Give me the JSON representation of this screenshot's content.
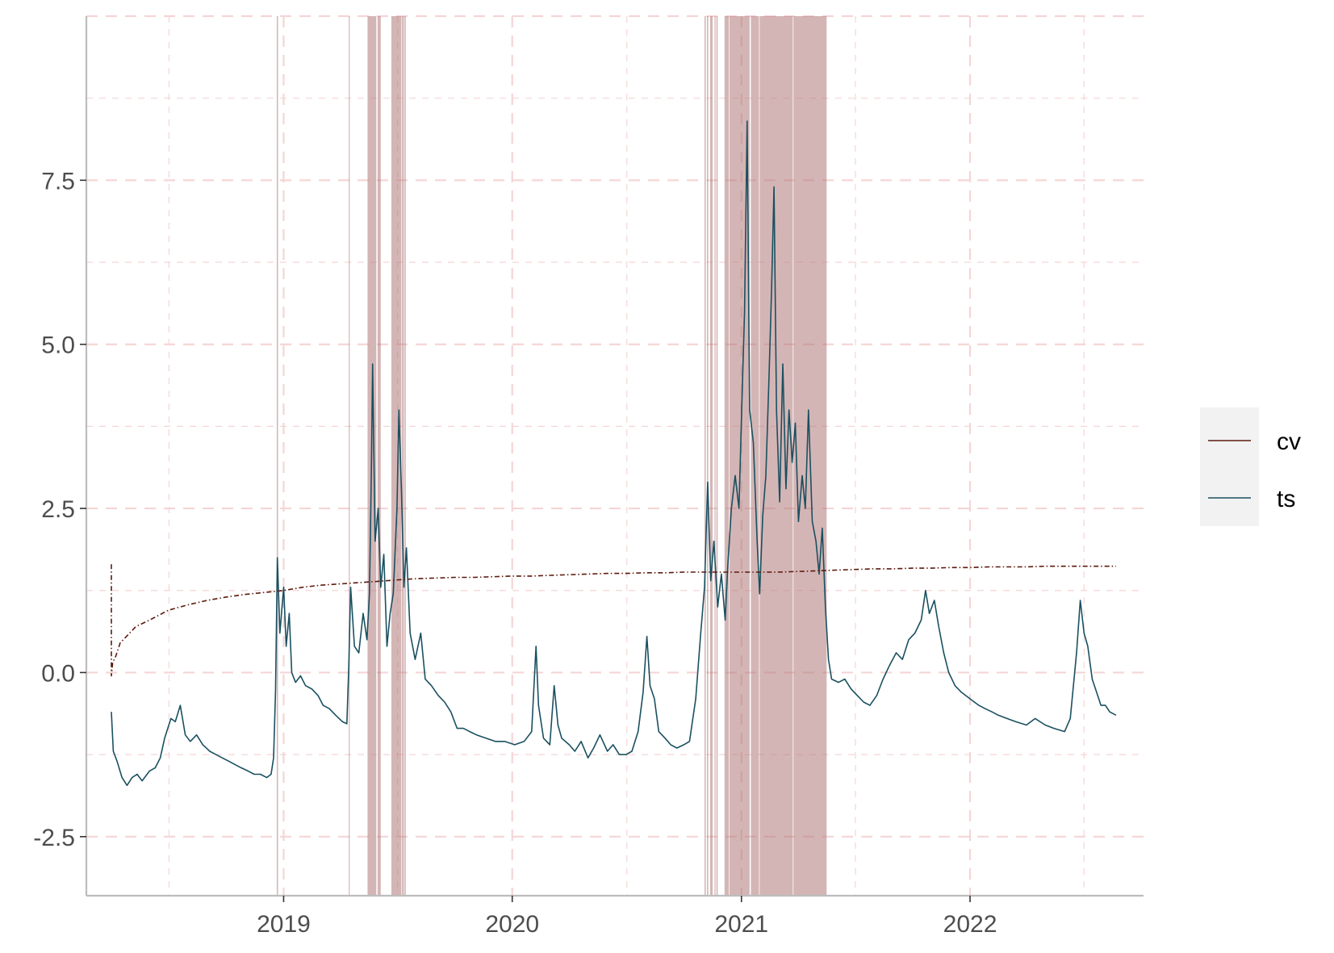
{
  "chart_data": {
    "type": "line",
    "title": "",
    "xlabel": "",
    "ylabel": "",
    "x_ticks": [
      "2019",
      "2020",
      "2021",
      "2022"
    ],
    "y_ticks": [
      "-2.5",
      "0.0",
      "2.5",
      "5.0",
      "7.5"
    ],
    "xlim": [
      "2018-02-20",
      "2022-10-05"
    ],
    "ylim": [
      -3.4,
      10.0
    ],
    "grid": true,
    "legend": {
      "position": "right",
      "entries": [
        "cv",
        "ts"
      ]
    },
    "colors": {
      "cv": "#5c1a0e",
      "ts": "#1a5060",
      "shade": "#b07878",
      "grid": "#f5d5d5",
      "axis": "#bdbdbd",
      "legend_bg": "#f2f2f2"
    },
    "series": [
      {
        "name": "ts",
        "points": [
          [
            "2018-04-01",
            -0.6
          ],
          [
            "2018-04-04",
            -1.2
          ],
          [
            "2018-04-10",
            -1.35
          ],
          [
            "2018-04-18",
            -1.6
          ],
          [
            "2018-04-26",
            -1.72
          ],
          [
            "2018-05-04",
            -1.6
          ],
          [
            "2018-05-12",
            -1.55
          ],
          [
            "2018-05-20",
            -1.65
          ],
          [
            "2018-06-01",
            -1.5
          ],
          [
            "2018-06-10",
            -1.45
          ],
          [
            "2018-06-18",
            -1.3
          ],
          [
            "2018-06-25",
            -1.0
          ],
          [
            "2018-07-05",
            -0.7
          ],
          [
            "2018-07-12",
            -0.75
          ],
          [
            "2018-07-20",
            -0.5
          ],
          [
            "2018-07-28",
            -0.95
          ],
          [
            "2018-08-05",
            -1.05
          ],
          [
            "2018-08-15",
            -0.95
          ],
          [
            "2018-08-25",
            -1.1
          ],
          [
            "2018-09-05",
            -1.2
          ],
          [
            "2018-09-15",
            -1.25
          ],
          [
            "2018-09-25",
            -1.3
          ],
          [
            "2018-10-05",
            -1.35
          ],
          [
            "2018-10-15",
            -1.4
          ],
          [
            "2018-10-25",
            -1.45
          ],
          [
            "2018-11-05",
            -1.5
          ],
          [
            "2018-11-15",
            -1.55
          ],
          [
            "2018-11-25",
            -1.55
          ],
          [
            "2018-12-05",
            -1.6
          ],
          [
            "2018-12-12",
            -1.55
          ],
          [
            "2018-12-16",
            -1.3
          ],
          [
            "2018-12-19",
            -0.3
          ],
          [
            "2018-12-22",
            1.75
          ],
          [
            "2018-12-26",
            0.6
          ],
          [
            "2019-01-01",
            1.3
          ],
          [
            "2019-01-05",
            0.4
          ],
          [
            "2019-01-10",
            0.9
          ],
          [
            "2019-01-14",
            0.0
          ],
          [
            "2019-01-20",
            -0.15
          ],
          [
            "2019-01-28",
            -0.05
          ],
          [
            "2019-02-05",
            -0.2
          ],
          [
            "2019-02-15",
            -0.25
          ],
          [
            "2019-02-25",
            -0.35
          ],
          [
            "2019-03-05",
            -0.5
          ],
          [
            "2019-03-15",
            -0.55
          ],
          [
            "2019-03-25",
            -0.65
          ],
          [
            "2019-04-05",
            -0.75
          ],
          [
            "2019-04-12",
            -0.78
          ],
          [
            "2019-04-15",
            0.1
          ],
          [
            "2019-04-18",
            1.3
          ],
          [
            "2019-04-24",
            0.4
          ],
          [
            "2019-05-01",
            0.3
          ],
          [
            "2019-05-08",
            0.9
          ],
          [
            "2019-05-14",
            0.5
          ],
          [
            "2019-05-18",
            1.2
          ],
          [
            "2019-05-21",
            3.0
          ],
          [
            "2019-05-23",
            4.7
          ],
          [
            "2019-05-27",
            2.0
          ],
          [
            "2019-06-01",
            2.5
          ],
          [
            "2019-06-05",
            1.3
          ],
          [
            "2019-06-10",
            1.8
          ],
          [
            "2019-06-15",
            0.4
          ],
          [
            "2019-06-20",
            0.9
          ],
          [
            "2019-06-25",
            1.2
          ],
          [
            "2019-07-01",
            2.5
          ],
          [
            "2019-07-04",
            4.0
          ],
          [
            "2019-07-08",
            2.8
          ],
          [
            "2019-07-12",
            1.3
          ],
          [
            "2019-07-16",
            1.9
          ],
          [
            "2019-07-22",
            0.6
          ],
          [
            "2019-07-30",
            0.2
          ],
          [
            "2019-08-08",
            0.6
          ],
          [
            "2019-08-15",
            -0.1
          ],
          [
            "2019-08-25",
            -0.2
          ],
          [
            "2019-09-05",
            -0.35
          ],
          [
            "2019-09-15",
            -0.45
          ],
          [
            "2019-09-25",
            -0.6
          ],
          [
            "2019-10-05",
            -0.85
          ],
          [
            "2019-10-15",
            -0.85
          ],
          [
            "2019-10-25",
            -0.9
          ],
          [
            "2019-11-05",
            -0.95
          ],
          [
            "2019-11-20",
            -1.0
          ],
          [
            "2019-12-05",
            -1.05
          ],
          [
            "2019-12-20",
            -1.05
          ],
          [
            "2020-01-05",
            -1.1
          ],
          [
            "2020-01-20",
            -1.05
          ],
          [
            "2020-02-01",
            -0.9
          ],
          [
            "2020-02-08",
            0.4
          ],
          [
            "2020-02-12",
            -0.5
          ],
          [
            "2020-02-20",
            -1.0
          ],
          [
            "2020-03-01",
            -1.1
          ],
          [
            "2020-03-08",
            -0.2
          ],
          [
            "2020-03-14",
            -0.8
          ],
          [
            "2020-03-20",
            -1.0
          ],
          [
            "2020-04-01",
            -1.1
          ],
          [
            "2020-04-10",
            -1.2
          ],
          [
            "2020-04-20",
            -1.05
          ],
          [
            "2020-05-01",
            -1.3
          ],
          [
            "2020-05-10",
            -1.15
          ],
          [
            "2020-05-20",
            -0.95
          ],
          [
            "2020-06-01",
            -1.2
          ],
          [
            "2020-06-10",
            -1.1
          ],
          [
            "2020-06-20",
            -1.25
          ],
          [
            "2020-07-01",
            -1.25
          ],
          [
            "2020-07-10",
            -1.2
          ],
          [
            "2020-07-20",
            -0.9
          ],
          [
            "2020-07-28",
            -0.3
          ],
          [
            "2020-08-03",
            0.55
          ],
          [
            "2020-08-08",
            -0.2
          ],
          [
            "2020-08-15",
            -0.4
          ],
          [
            "2020-08-22",
            -0.9
          ],
          [
            "2020-09-01",
            -1.0
          ],
          [
            "2020-09-10",
            -1.1
          ],
          [
            "2020-09-20",
            -1.15
          ],
          [
            "2020-10-01",
            -1.1
          ],
          [
            "2020-10-10",
            -1.05
          ],
          [
            "2020-10-20",
            -0.4
          ],
          [
            "2020-10-28",
            0.6
          ],
          [
            "2020-11-03",
            1.3
          ],
          [
            "2020-11-08",
            2.9
          ],
          [
            "2020-11-13",
            1.4
          ],
          [
            "2020-11-18",
            2.0
          ],
          [
            "2020-11-24",
            1.0
          ],
          [
            "2020-11-30",
            1.5
          ],
          [
            "2020-12-06",
            0.8
          ],
          [
            "2020-12-10",
            1.6
          ],
          [
            "2020-12-16",
            2.5
          ],
          [
            "2020-12-22",
            3.0
          ],
          [
            "2020-12-28",
            2.5
          ],
          [
            "2021-01-02",
            4.2
          ],
          [
            "2021-01-06",
            5.5
          ],
          [
            "2021-01-10",
            8.4
          ],
          [
            "2021-01-14",
            4.0
          ],
          [
            "2021-01-20",
            3.5
          ],
          [
            "2021-01-26",
            2.0
          ],
          [
            "2021-01-30",
            1.2
          ],
          [
            "2021-02-04",
            2.4
          ],
          [
            "2021-02-09",
            3.0
          ],
          [
            "2021-02-14",
            4.5
          ],
          [
            "2021-02-18",
            5.8
          ],
          [
            "2021-02-22",
            7.4
          ],
          [
            "2021-02-26",
            4.0
          ],
          [
            "2021-03-03",
            2.6
          ],
          [
            "2021-03-08",
            4.7
          ],
          [
            "2021-03-13",
            2.8
          ],
          [
            "2021-03-18",
            4.0
          ],
          [
            "2021-03-23",
            3.2
          ],
          [
            "2021-03-28",
            3.8
          ],
          [
            "2021-04-02",
            2.3
          ],
          [
            "2021-04-08",
            3.0
          ],
          [
            "2021-04-13",
            2.5
          ],
          [
            "2021-04-18",
            4.0
          ],
          [
            "2021-04-24",
            2.3
          ],
          [
            "2021-04-30",
            2.0
          ],
          [
            "2021-05-05",
            1.5
          ],
          [
            "2021-05-10",
            2.2
          ],
          [
            "2021-05-15",
            1.0
          ],
          [
            "2021-05-20",
            0.2
          ],
          [
            "2021-05-25",
            -0.1
          ],
          [
            "2021-06-05",
            -0.15
          ],
          [
            "2021-06-15",
            -0.1
          ],
          [
            "2021-06-25",
            -0.25
          ],
          [
            "2021-07-05",
            -0.35
          ],
          [
            "2021-07-15",
            -0.45
          ],
          [
            "2021-07-25",
            -0.5
          ],
          [
            "2021-08-05",
            -0.35
          ],
          [
            "2021-08-15",
            -0.1
          ],
          [
            "2021-08-25",
            0.1
          ],
          [
            "2021-09-05",
            0.3
          ],
          [
            "2021-09-15",
            0.2
          ],
          [
            "2021-09-25",
            0.5
          ],
          [
            "2021-10-05",
            0.6
          ],
          [
            "2021-10-15",
            0.8
          ],
          [
            "2021-10-22",
            1.25
          ],
          [
            "2021-10-28",
            0.9
          ],
          [
            "2021-11-05",
            1.1
          ],
          [
            "2021-11-12",
            0.7
          ],
          [
            "2021-11-20",
            0.3
          ],
          [
            "2021-11-28",
            0.0
          ],
          [
            "2021-12-08",
            -0.2
          ],
          [
            "2021-12-18",
            -0.3
          ],
          [
            "2022-01-01",
            -0.4
          ],
          [
            "2022-01-15",
            -0.5
          ],
          [
            "2022-01-25",
            -0.55
          ],
          [
            "2022-02-05",
            -0.6
          ],
          [
            "2022-02-15",
            -0.65
          ],
          [
            "2022-03-01",
            -0.7
          ],
          [
            "2022-03-15",
            -0.75
          ],
          [
            "2022-04-01",
            -0.8
          ],
          [
            "2022-04-15",
            -0.7
          ],
          [
            "2022-05-01",
            -0.8
          ],
          [
            "2022-05-15",
            -0.85
          ],
          [
            "2022-06-01",
            -0.9
          ],
          [
            "2022-06-10",
            -0.7
          ],
          [
            "2022-06-20",
            0.3
          ],
          [
            "2022-06-26",
            1.1
          ],
          [
            "2022-07-02",
            0.6
          ],
          [
            "2022-07-08",
            0.4
          ],
          [
            "2022-07-15",
            -0.1
          ],
          [
            "2022-07-22",
            -0.3
          ],
          [
            "2022-07-29",
            -0.5
          ],
          [
            "2022-08-05",
            -0.5
          ],
          [
            "2022-08-12",
            -0.6
          ],
          [
            "2022-08-22",
            -0.65
          ]
        ]
      },
      {
        "name": "cv",
        "points": [
          [
            "2018-04-01",
            1.65
          ],
          [
            "2018-04-01",
            -0.05
          ],
          [
            "2018-04-03",
            0.15
          ],
          [
            "2018-04-08",
            0.25
          ],
          [
            "2018-04-15",
            0.45
          ],
          [
            "2018-04-25",
            0.55
          ],
          [
            "2018-05-10",
            0.7
          ],
          [
            "2018-06-01",
            0.8
          ],
          [
            "2018-07-01",
            0.95
          ],
          [
            "2018-08-01",
            1.03
          ],
          [
            "2018-09-01",
            1.1
          ],
          [
            "2018-10-01",
            1.15
          ],
          [
            "2018-11-01",
            1.19
          ],
          [
            "2018-12-01",
            1.22
          ],
          [
            "2019-01-01",
            1.25
          ],
          [
            "2019-02-01",
            1.3
          ],
          [
            "2019-03-01",
            1.33
          ],
          [
            "2019-04-01",
            1.35
          ],
          [
            "2019-05-01",
            1.37
          ],
          [
            "2019-06-01",
            1.39
          ],
          [
            "2019-07-01",
            1.41
          ],
          [
            "2019-08-01",
            1.43
          ],
          [
            "2019-09-01",
            1.44
          ],
          [
            "2019-10-01",
            1.45
          ],
          [
            "2019-11-01",
            1.45
          ],
          [
            "2019-12-01",
            1.46
          ],
          [
            "2020-01-01",
            1.47
          ],
          [
            "2020-02-01",
            1.47
          ],
          [
            "2020-03-01",
            1.48
          ],
          [
            "2020-04-01",
            1.49
          ],
          [
            "2020-05-01",
            1.5
          ],
          [
            "2020-06-01",
            1.51
          ],
          [
            "2020-07-01",
            1.51
          ],
          [
            "2020-08-01",
            1.52
          ],
          [
            "2020-09-01",
            1.52
          ],
          [
            "2020-10-01",
            1.53
          ],
          [
            "2020-11-01",
            1.53
          ],
          [
            "2020-12-01",
            1.53
          ],
          [
            "2021-01-01",
            1.53
          ],
          [
            "2021-02-01",
            1.53
          ],
          [
            "2021-03-01",
            1.53
          ],
          [
            "2021-04-01",
            1.54
          ],
          [
            "2021-05-01",
            1.55
          ],
          [
            "2021-06-01",
            1.56
          ],
          [
            "2021-07-01",
            1.57
          ],
          [
            "2021-08-01",
            1.58
          ],
          [
            "2021-09-01",
            1.58
          ],
          [
            "2021-10-01",
            1.59
          ],
          [
            "2021-11-01",
            1.59
          ],
          [
            "2021-12-01",
            1.6
          ],
          [
            "2022-01-01",
            1.6
          ],
          [
            "2022-02-01",
            1.61
          ],
          [
            "2022-03-01",
            1.61
          ],
          [
            "2022-04-01",
            1.61
          ],
          [
            "2022-05-01",
            1.62
          ],
          [
            "2022-06-01",
            1.62
          ],
          [
            "2022-07-01",
            1.62
          ],
          [
            "2022-08-22",
            1.62
          ]
        ]
      }
    ],
    "shaded_periods": [
      [
        "2018-12-21",
        "2018-12-23"
      ],
      [
        "2019-04-15",
        "2019-04-16"
      ],
      [
        "2019-05-15",
        "2019-05-29"
      ],
      [
        "2019-05-31",
        "2019-06-05"
      ],
      [
        "2019-06-22",
        "2019-07-08"
      ],
      [
        "2019-07-09",
        "2019-07-12"
      ],
      [
        "2019-07-13",
        "2019-07-15"
      ],
      [
        "2020-11-03",
        "2020-11-05"
      ],
      [
        "2020-11-07",
        "2020-11-09"
      ],
      [
        "2020-11-12",
        "2020-11-16"
      ],
      [
        "2020-11-19",
        "2020-11-20"
      ],
      [
        "2020-11-22",
        "2020-11-24"
      ],
      [
        "2020-12-05",
        "2020-12-12"
      ],
      [
        "2020-12-13",
        "2021-01-14"
      ],
      [
        "2021-01-16",
        "2021-01-29"
      ],
      [
        "2021-01-30",
        "2021-03-24"
      ],
      [
        "2021-03-25",
        "2021-05-17"
      ]
    ]
  }
}
